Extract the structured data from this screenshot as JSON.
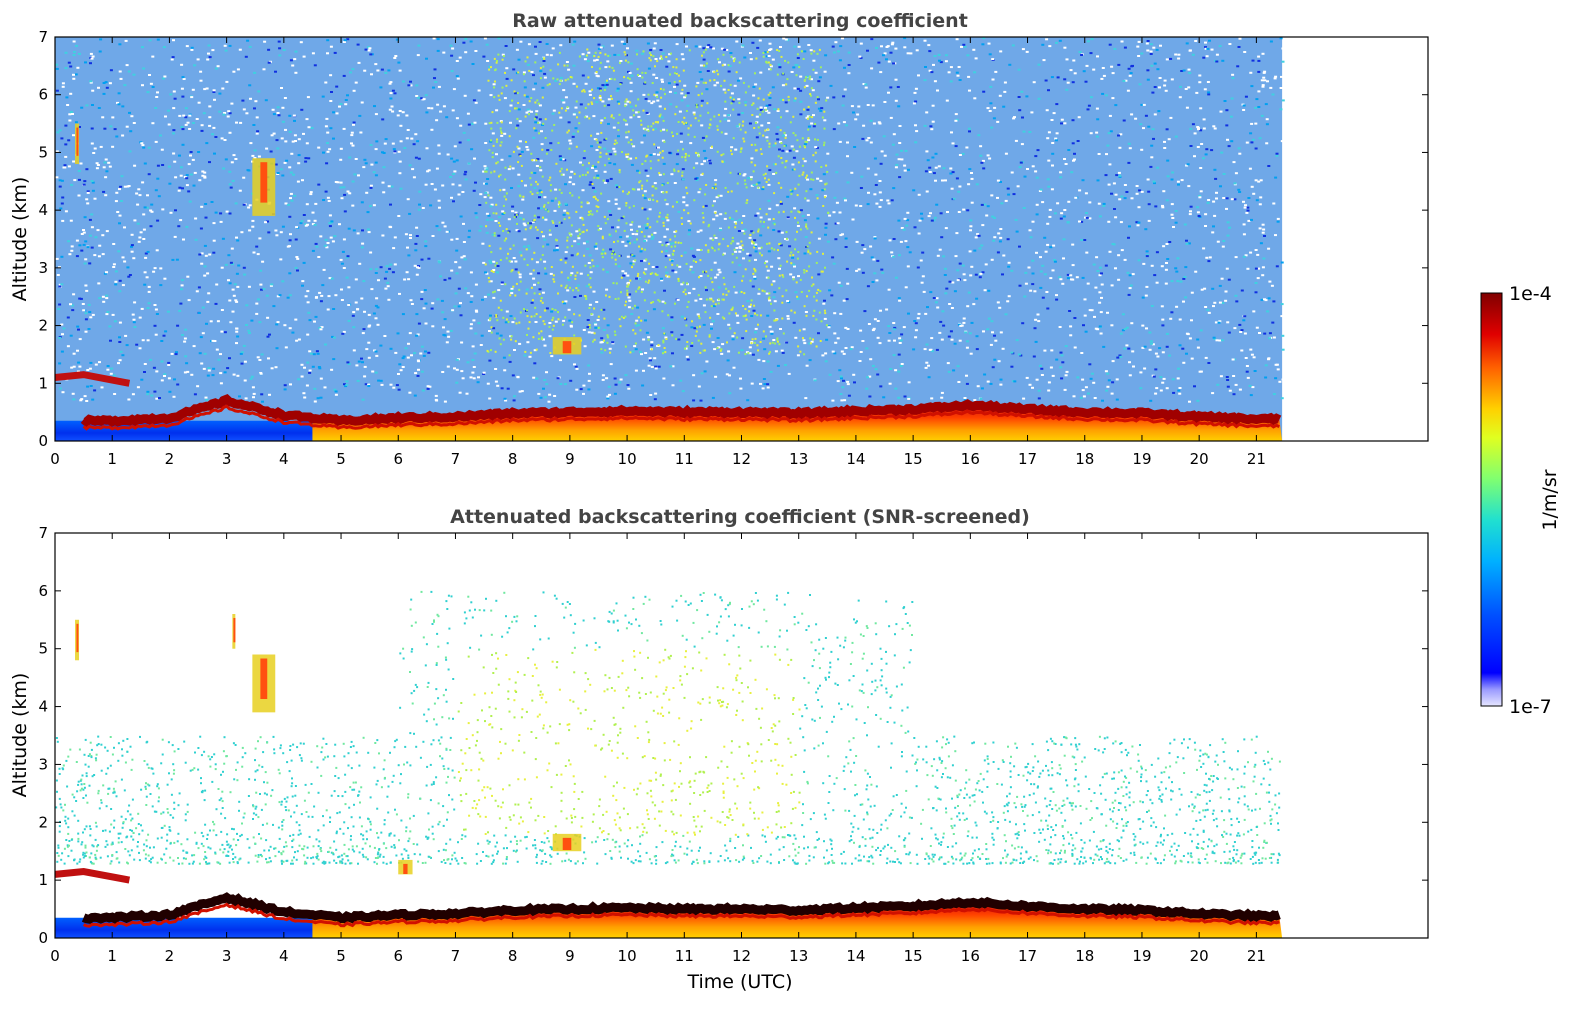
{
  "chart_data": [
    {
      "type": "heatmap",
      "title": "Raw attenuated backscattering coefficient",
      "xlabel": "",
      "ylabel": "Altitude (km)",
      "xlim": [
        0,
        24
      ],
      "ylim": [
        0,
        7
      ],
      "x_ticks": [
        0,
        1,
        2,
        3,
        4,
        5,
        6,
        7,
        8,
        9,
        10,
        11,
        12,
        13,
        14,
        15,
        16,
        17,
        18,
        19,
        20,
        21
      ],
      "y_ticks": [
        0,
        1,
        2,
        3,
        4,
        5,
        6,
        7
      ],
      "data_end_time": 21.45,
      "colorscale": "jet",
      "screened": false,
      "layers": [
        {
          "name": "boundary-layer",
          "x": [
            0,
            1,
            2,
            3,
            4,
            5,
            6,
            7,
            8,
            9,
            10,
            11,
            12,
            13,
            14,
            15,
            16,
            17,
            18,
            19,
            20,
            21,
            21.45
          ],
          "top_altitude": [
            0.35,
            0.35,
            0.4,
            0.7,
            0.45,
            0.35,
            0.4,
            0.42,
            0.48,
            0.5,
            0.52,
            0.5,
            0.5,
            0.48,
            0.52,
            0.55,
            0.62,
            0.55,
            0.5,
            0.48,
            0.42,
            0.38,
            0.38
          ]
        },
        {
          "name": "elevated-aerosol",
          "x": [
            0,
            0.5,
            1.3
          ],
          "altitude": [
            1.1,
            1.15,
            1.0
          ]
        },
        {
          "name": "cloud",
          "x": [
            0.35,
            0.42
          ],
          "altitude_range": [
            4.8,
            5.5
          ]
        },
        {
          "name": "cloud",
          "x": [
            3.45,
            3.85
          ],
          "altitude_range": [
            3.9,
            4.9
          ]
        },
        {
          "name": "cloud",
          "x": [
            8.7,
            9.2
          ],
          "altitude_range": [
            1.5,
            1.8
          ]
        }
      ]
    },
    {
      "type": "heatmap",
      "title": "Attenuated backscattering coefficient (SNR-screened)",
      "xlabel": "Time (UTC)",
      "ylabel": "Altitude (km)",
      "xlim": [
        0,
        24
      ],
      "ylim": [
        0,
        7
      ],
      "x_ticks": [
        0,
        1,
        2,
        3,
        4,
        5,
        6,
        7,
        8,
        9,
        10,
        11,
        12,
        13,
        14,
        15,
        16,
        17,
        18,
        19,
        20,
        21
      ],
      "y_ticks": [
        0,
        1,
        2,
        3,
        4,
        5,
        6,
        7
      ],
      "data_end_time": 21.45,
      "colorscale": "jet",
      "screened": true,
      "layers": [
        {
          "name": "boundary-layer",
          "x": [
            0,
            1,
            2,
            3,
            4,
            5,
            6,
            7,
            8,
            9,
            10,
            11,
            12,
            13,
            14,
            15,
            16,
            17,
            18,
            19,
            20,
            21,
            21.45
          ],
          "top_altitude": [
            0.35,
            0.35,
            0.4,
            0.7,
            0.45,
            0.35,
            0.4,
            0.42,
            0.48,
            0.5,
            0.52,
            0.5,
            0.5,
            0.48,
            0.52,
            0.55,
            0.62,
            0.55,
            0.5,
            0.48,
            0.42,
            0.38,
            0.38
          ]
        },
        {
          "name": "elevated-aerosol",
          "x": [
            0,
            0.5,
            1.3
          ],
          "altitude": [
            1.1,
            1.15,
            1.0
          ]
        },
        {
          "name": "cloud",
          "x": [
            0.35,
            0.42
          ],
          "altitude_range": [
            4.8,
            5.5
          ]
        },
        {
          "name": "cloud",
          "x": [
            3.1,
            3.15
          ],
          "altitude_range": [
            5.0,
            5.6
          ]
        },
        {
          "name": "cloud",
          "x": [
            3.45,
            3.85
          ],
          "altitude_range": [
            3.9,
            4.9
          ]
        },
        {
          "name": "cloud",
          "x": [
            8.7,
            9.2
          ],
          "altitude_range": [
            1.5,
            1.8
          ]
        },
        {
          "name": "cloud",
          "x": [
            6.0,
            6.25
          ],
          "altitude_range": [
            1.1,
            1.35
          ]
        }
      ]
    }
  ],
  "colorbar": {
    "min_label": "1e-7",
    "max_label": "1e-4",
    "unit_label": "1/m/sr",
    "min": 1e-07,
    "max": 0.0001,
    "scale": "log",
    "colormap": "jet"
  }
}
